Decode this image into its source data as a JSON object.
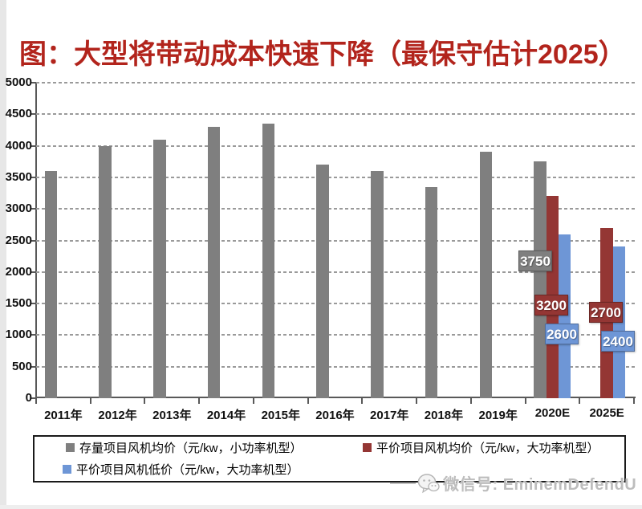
{
  "title": "图：大型将带动成本快速下降（最保守估计2025）",
  "title_color": "#b2241c",
  "chart_data": {
    "type": "bar",
    "title": "图：大型将带动成本快速下降（最保守估计2025）",
    "xlabel": "",
    "ylabel": "",
    "ylim": [
      0,
      5000
    ],
    "ytick_step": 500,
    "ytick_labels": [
      "5000",
      "4500",
      "4000",
      "3500",
      "3000",
      "2500",
      "2000",
      "1500",
      "1000",
      "500",
      "0"
    ],
    "grid": "horizontal-dashed",
    "legend_position": "bottom-boxed",
    "categories": [
      "2011年",
      "2012年",
      "2013年",
      "2014年",
      "2015年",
      "2016年",
      "2017年",
      "2018年",
      "2019年",
      "2020E",
      "2025E"
    ],
    "series": [
      {
        "name": "存量项目风机均价（元/kw，小功率机型）",
        "color": "#7f7f7f",
        "values": [
          3600,
          4000,
          4100,
          4300,
          4350,
          3700,
          3600,
          3350,
          3900,
          3750,
          null
        ]
      },
      {
        "name": "平价项目风机均价（元/kw，大功率机型）",
        "color": "#943634",
        "values": [
          null,
          null,
          null,
          null,
          null,
          null,
          null,
          null,
          null,
          3200,
          2700
        ]
      },
      {
        "name": "平价项目风机低价（元/kw，大功率机型）",
        "color": "#6e96d6",
        "values": [
          null,
          null,
          null,
          null,
          null,
          null,
          null,
          null,
          null,
          2600,
          2400
        ]
      }
    ],
    "data_labels": [
      {
        "text": "3750",
        "series": 0,
        "category": "2020E"
      },
      {
        "text": "3200",
        "series": 1,
        "category": "2020E"
      },
      {
        "text": "2600",
        "series": 2,
        "category": "2020E"
      },
      {
        "text": "2700",
        "series": 1,
        "category": "2025E"
      },
      {
        "text": "2400",
        "series": 2,
        "category": "2025E"
      }
    ]
  },
  "legend": {
    "items": [
      {
        "label": "存量项目风机均价（元/kw，小功率机型）",
        "color": "#7f7f7f"
      },
      {
        "label": "平价项目风机均价（元/kw，大功率机型）",
        "color": "#943634"
      },
      {
        "label": "平价项目风机低价（元/kw，大功率机型）",
        "color": "#6e96d6"
      }
    ]
  },
  "watermark": {
    "icon": "wechat-icon",
    "text": "微信号: EminemDefendU"
  }
}
